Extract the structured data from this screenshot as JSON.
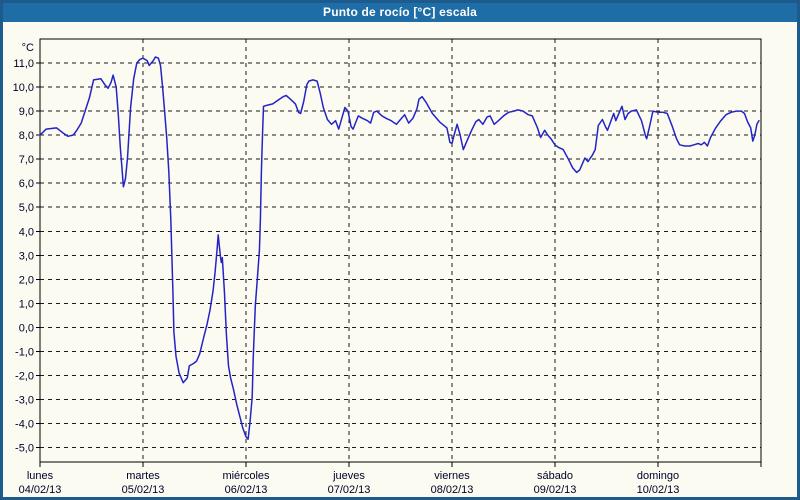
{
  "window": {
    "title": "Punto de rocío [°C] escala"
  },
  "colors": {
    "titlebar_bg": "#1e6da6",
    "frame_border": "#1d5b8c",
    "content_bg": "#fbfbf2",
    "grid_color": "#1a1a1a",
    "axis_color": "#000000",
    "line_color": "#2424c6",
    "text_color": "#000028"
  },
  "chart_data": {
    "type": "line",
    "title": "Punto de rocío [°C] escala",
    "xlabel": "",
    "ylabel": "",
    "y_unit_label": "°C",
    "ylim": [
      -5.6,
      12.0
    ],
    "xlim_days": [
      0,
      7
    ],
    "grid": "dashed",
    "legend_position": "none",
    "y_ticks": [
      {
        "value": 11,
        "label": "11,0"
      },
      {
        "value": 10,
        "label": "10,0"
      },
      {
        "value": 9,
        "label": "9,0"
      },
      {
        "value": 8,
        "label": "8,0"
      },
      {
        "value": 7,
        "label": "7,0"
      },
      {
        "value": 6,
        "label": "6,0"
      },
      {
        "value": 5,
        "label": "5,0"
      },
      {
        "value": 4,
        "label": "4,0"
      },
      {
        "value": 3,
        "label": "3,0"
      },
      {
        "value": 2,
        "label": "2,0"
      },
      {
        "value": 1,
        "label": "1,0"
      },
      {
        "value": 0,
        "label": "0,0"
      },
      {
        "value": -1,
        "label": "-1,0"
      },
      {
        "value": -2,
        "label": "-2,0"
      },
      {
        "value": -3,
        "label": "-3,0"
      },
      {
        "value": -4,
        "label": "-4,0"
      },
      {
        "value": -5,
        "label": "-5,0"
      }
    ],
    "x_days": [
      {
        "name": "lunes",
        "date": "04/02/13"
      },
      {
        "name": "martes",
        "date": "05/02/13"
      },
      {
        "name": "miércoles",
        "date": "06/02/13"
      },
      {
        "name": "jueves",
        "date": "07/02/13"
      },
      {
        "name": "viernes",
        "date": "08/02/13"
      },
      {
        "name": "sábado",
        "date": "09/02/13"
      },
      {
        "name": "domingo",
        "date": "10/02/13"
      }
    ],
    "series": [
      {
        "name": "Punto de rocío [°C]",
        "color": "#2424c6",
        "points": [
          [
            0.0,
            8.0
          ],
          [
            0.06,
            8.25
          ],
          [
            0.16,
            8.3
          ],
          [
            0.22,
            8.1
          ],
          [
            0.27,
            7.95
          ],
          [
            0.32,
            8.0
          ],
          [
            0.35,
            8.15
          ],
          [
            0.4,
            8.5
          ],
          [
            0.48,
            9.55
          ],
          [
            0.52,
            10.3
          ],
          [
            0.59,
            10.35
          ],
          [
            0.63,
            10.1
          ],
          [
            0.66,
            9.95
          ],
          [
            0.69,
            10.2
          ],
          [
            0.71,
            10.5
          ],
          [
            0.74,
            10.0
          ],
          [
            0.76,
            8.85
          ],
          [
            0.78,
            7.5
          ],
          [
            0.8,
            6.4
          ],
          [
            0.81,
            5.85
          ],
          [
            0.83,
            6.2
          ],
          [
            0.85,
            7.05
          ],
          [
            0.88,
            9.15
          ],
          [
            0.91,
            10.35
          ],
          [
            0.94,
            11.0
          ],
          [
            0.97,
            11.15
          ],
          [
            1.0,
            11.2
          ],
          [
            1.04,
            11.1
          ],
          [
            1.06,
            10.9
          ],
          [
            1.1,
            11.1
          ],
          [
            1.12,
            11.25
          ],
          [
            1.15,
            11.2
          ],
          [
            1.17,
            10.9
          ],
          [
            1.19,
            10.0
          ],
          [
            1.21,
            9.0
          ],
          [
            1.23,
            7.9
          ],
          [
            1.25,
            6.5
          ],
          [
            1.27,
            4.5
          ],
          [
            1.29,
            1.5
          ],
          [
            1.3,
            -0.2
          ],
          [
            1.32,
            -1.2
          ],
          [
            1.35,
            -1.9
          ],
          [
            1.39,
            -2.3
          ],
          [
            1.43,
            -2.1
          ],
          [
            1.45,
            -1.6
          ],
          [
            1.49,
            -1.5
          ],
          [
            1.52,
            -1.4
          ],
          [
            1.55,
            -1.1
          ],
          [
            1.59,
            -0.4
          ],
          [
            1.62,
            0.1
          ],
          [
            1.65,
            0.7
          ],
          [
            1.68,
            1.5
          ],
          [
            1.7,
            2.3
          ],
          [
            1.72,
            3.3
          ],
          [
            1.73,
            3.85
          ],
          [
            1.75,
            3.0
          ],
          [
            1.76,
            2.7
          ],
          [
            1.77,
            2.9
          ],
          [
            1.79,
            1.5
          ],
          [
            1.81,
            -0.3
          ],
          [
            1.83,
            -1.6
          ],
          [
            1.85,
            -2.1
          ],
          [
            1.88,
            -2.6
          ],
          [
            1.91,
            -3.2
          ],
          [
            1.94,
            -3.7
          ],
          [
            1.97,
            -4.2
          ],
          [
            2.0,
            -4.55
          ],
          [
            2.02,
            -4.65
          ],
          [
            2.04,
            -3.9
          ],
          [
            2.06,
            -2.9
          ],
          [
            2.07,
            -1.3
          ],
          [
            2.09,
            0.9
          ],
          [
            2.11,
            2.0
          ],
          [
            2.13,
            3.2
          ],
          [
            2.14,
            4.5
          ],
          [
            2.15,
            6.5
          ],
          [
            2.16,
            8.0
          ],
          [
            2.17,
            9.2
          ],
          [
            2.21,
            9.25
          ],
          [
            2.26,
            9.3
          ],
          [
            2.31,
            9.45
          ],
          [
            2.36,
            9.6
          ],
          [
            2.39,
            9.65
          ],
          [
            2.43,
            9.5
          ],
          [
            2.48,
            9.3
          ],
          [
            2.51,
            8.95
          ],
          [
            2.53,
            8.9
          ],
          [
            2.56,
            9.4
          ],
          [
            2.59,
            10.1
          ],
          [
            2.61,
            10.25
          ],
          [
            2.65,
            10.3
          ],
          [
            2.69,
            10.25
          ],
          [
            2.72,
            9.75
          ],
          [
            2.75,
            9.15
          ],
          [
            2.79,
            8.65
          ],
          [
            2.83,
            8.45
          ],
          [
            2.87,
            8.6
          ],
          [
            2.9,
            8.25
          ],
          [
            2.93,
            8.7
          ],
          [
            2.96,
            9.15
          ],
          [
            2.99,
            9.0
          ],
          [
            3.02,
            8.35
          ],
          [
            3.04,
            8.25
          ],
          [
            3.09,
            8.8
          ],
          [
            3.13,
            8.7
          ],
          [
            3.18,
            8.6
          ],
          [
            3.21,
            8.5
          ],
          [
            3.24,
            8.95
          ],
          [
            3.27,
            9.0
          ],
          [
            3.32,
            8.8
          ],
          [
            3.36,
            8.7
          ],
          [
            3.41,
            8.6
          ],
          [
            3.46,
            8.45
          ],
          [
            3.5,
            8.65
          ],
          [
            3.54,
            8.85
          ],
          [
            3.58,
            8.5
          ],
          [
            3.62,
            8.7
          ],
          [
            3.66,
            9.1
          ],
          [
            3.68,
            9.5
          ],
          [
            3.71,
            9.6
          ],
          [
            3.75,
            9.35
          ],
          [
            3.81,
            8.9
          ],
          [
            3.88,
            8.55
          ],
          [
            3.95,
            8.3
          ],
          [
            3.98,
            7.7
          ],
          [
            4.0,
            7.65
          ],
          [
            4.02,
            8.0
          ],
          [
            4.05,
            8.45
          ],
          [
            4.08,
            8.0
          ],
          [
            4.11,
            7.4
          ],
          [
            4.15,
            7.8
          ],
          [
            4.19,
            8.2
          ],
          [
            4.23,
            8.55
          ],
          [
            4.26,
            8.65
          ],
          [
            4.3,
            8.45
          ],
          [
            4.34,
            8.75
          ],
          [
            4.37,
            8.8
          ],
          [
            4.41,
            8.45
          ],
          [
            4.45,
            8.6
          ],
          [
            4.5,
            8.8
          ],
          [
            4.55,
            8.95
          ],
          [
            4.6,
            9.0
          ],
          [
            4.64,
            9.05
          ],
          [
            4.69,
            9.0
          ],
          [
            4.74,
            8.85
          ],
          [
            4.78,
            8.8
          ],
          [
            4.83,
            8.3
          ],
          [
            4.86,
            7.9
          ],
          [
            4.9,
            8.2
          ],
          [
            4.93,
            8.0
          ],
          [
            4.96,
            7.85
          ],
          [
            5.0,
            7.6
          ],
          [
            5.03,
            7.5
          ],
          [
            5.08,
            7.4
          ],
          [
            5.13,
            7.0
          ],
          [
            5.17,
            6.65
          ],
          [
            5.21,
            6.45
          ],
          [
            5.24,
            6.55
          ],
          [
            5.27,
            6.85
          ],
          [
            5.29,
            7.05
          ],
          [
            5.32,
            6.9
          ],
          [
            5.36,
            7.15
          ],
          [
            5.39,
            7.4
          ],
          [
            5.42,
            8.4
          ],
          [
            5.46,
            8.65
          ],
          [
            5.49,
            8.35
          ],
          [
            5.51,
            8.2
          ],
          [
            5.54,
            8.55
          ],
          [
            5.57,
            8.9
          ],
          [
            5.59,
            8.6
          ],
          [
            5.63,
            9.0
          ],
          [
            5.65,
            9.2
          ],
          [
            5.68,
            8.65
          ],
          [
            5.71,
            8.9
          ],
          [
            5.74,
            9.0
          ],
          [
            5.79,
            9.05
          ],
          [
            5.84,
            8.6
          ],
          [
            5.88,
            7.95
          ],
          [
            5.89,
            7.85
          ],
          [
            5.92,
            8.4
          ],
          [
            5.95,
            9.0
          ],
          [
            6.0,
            8.95
          ],
          [
            6.05,
            8.95
          ],
          [
            6.09,
            8.9
          ],
          [
            6.14,
            8.35
          ],
          [
            6.18,
            7.85
          ],
          [
            6.21,
            7.6
          ],
          [
            6.26,
            7.55
          ],
          [
            6.31,
            7.55
          ],
          [
            6.35,
            7.6
          ],
          [
            6.39,
            7.65
          ],
          [
            6.42,
            7.6
          ],
          [
            6.45,
            7.7
          ],
          [
            6.48,
            7.55
          ],
          [
            6.51,
            7.9
          ],
          [
            6.56,
            8.3
          ],
          [
            6.61,
            8.6
          ],
          [
            6.66,
            8.85
          ],
          [
            6.71,
            8.95
          ],
          [
            6.76,
            9.0
          ],
          [
            6.81,
            9.0
          ],
          [
            6.84,
            8.9
          ],
          [
            6.87,
            8.55
          ],
          [
            6.9,
            8.3
          ],
          [
            6.92,
            7.75
          ],
          [
            6.94,
            8.0
          ],
          [
            6.96,
            8.45
          ],
          [
            6.98,
            8.6
          ]
        ]
      }
    ]
  }
}
